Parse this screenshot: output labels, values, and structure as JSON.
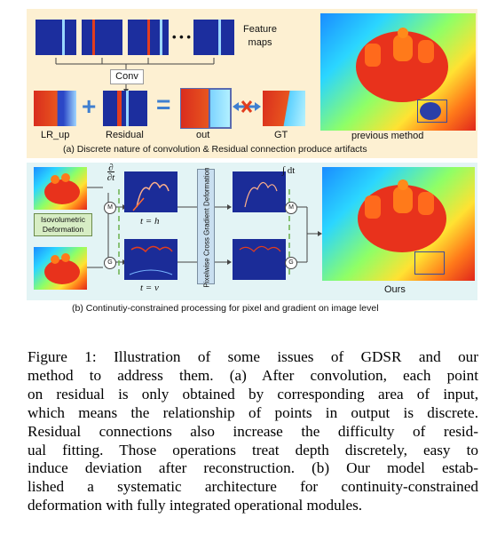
{
  "figure": {
    "panel_a": {
      "feature_maps_label": "Feature maps",
      "ellipsis": "• • •",
      "conv_label": "Conv",
      "plus": "+",
      "equals": "=",
      "lr_up_label": "LR_up",
      "residual_label": "Residual",
      "out_label": "out",
      "gt_label": "GT",
      "previous_label": "previous method",
      "caption": "(a) Discrete nature of  convolution & Residual connection produce artifacts"
    },
    "panel_b": {
      "partial_t": "∂",
      "partial_den": "∂t",
      "iso_label": "Isovolumetric Deformation",
      "t_h": "t = h",
      "t_v": "t = v",
      "pixelwise_label": "Pixelwise Cross Gradient Deformation",
      "integral": "∫ dt",
      "node_m": "M",
      "node_g": "G",
      "ours_label": "Ours",
      "caption": "(b) Continutiy-constrained processing for pixel and gradient on image level"
    },
    "colors": {
      "panel_a_bg": "#fdf0d2",
      "panel_b_bg": "#e3f4f5",
      "accent_red": "#e23d1e",
      "accent_blue": "#2f6fd6"
    }
  },
  "caption_text": {
    "lines": [
      "Figure 1: Illustration of some issues of GDSR and our",
      "method to address them. (a) After convolution, each point",
      "on residual is only obtained by corresponding area of input,",
      "which means the relationship of points in output is discrete.",
      "Residual connections also increase the difficulty of resid-",
      "ual fitting. Those operations treat depth discretely, easy to",
      "induce deviation after reconstruction. (b) Our model estab-",
      "lished a systematic architecture for continuity-constrained",
      "deformation with fully integrated operational modules."
    ]
  }
}
